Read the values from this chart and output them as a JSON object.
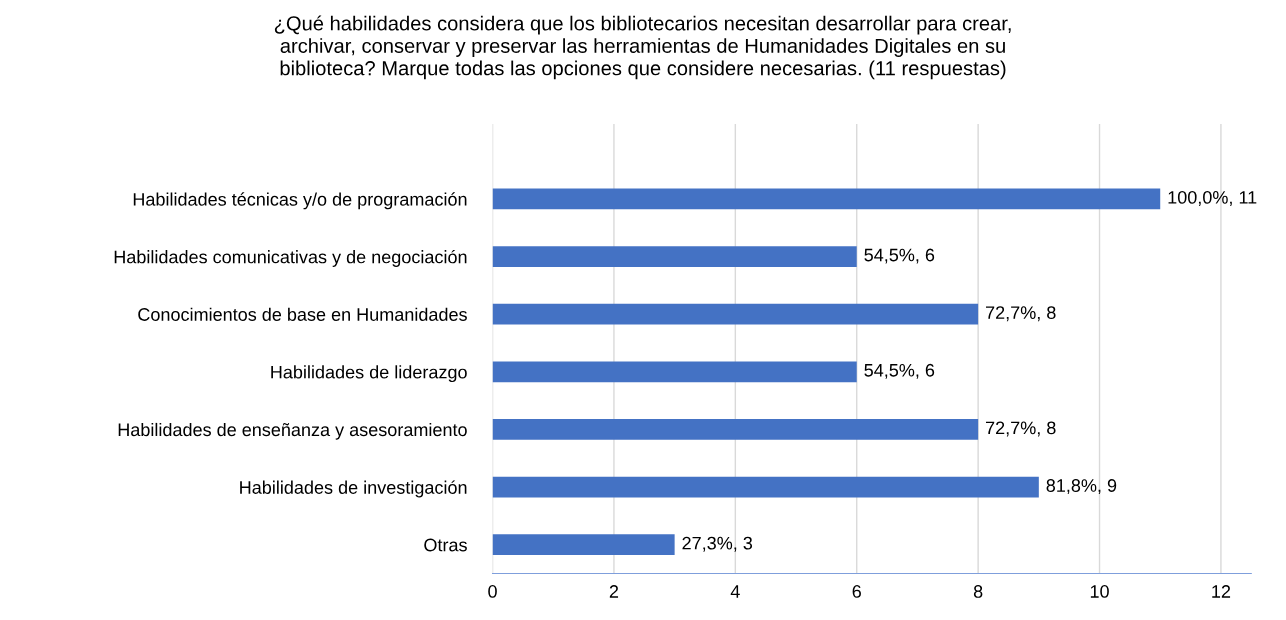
{
  "chart_data": {
    "type": "bar",
    "orientation": "horizontal",
    "title": "¿Qué habilidades considera que los bibliotecarios necesitan desarrollar para crear,\narchivar, conservar y preservar las herramientas de Humanidades Digitales en su\nbiblioteca? Marque todas las opciones que considere necesarias. (11 respuestas)",
    "categories": [
      "Habilidades técnicas y/o de programación",
      "Habilidades comunicativas y de negociación",
      "Conocimientos de base en Humanidades",
      "Habilidades de liderazgo",
      "Habilidades de enseñanza y asesoramiento",
      "Habilidades de investigación",
      "Otras"
    ],
    "values": [
      11,
      6,
      8,
      6,
      8,
      9,
      3
    ],
    "value_labels": [
      "100,0%, 11",
      "54,5%, 6",
      "72,7%, 8",
      "54,5%, 6",
      "72,7%, 8",
      "81,8%, 9",
      "27,3%, 3"
    ],
    "color": "#4472c4",
    "xlim": [
      0,
      12.5
    ],
    "xticks": [
      0,
      2,
      4,
      6,
      8,
      10,
      12
    ],
    "grid": "x",
    "legend": false
  }
}
